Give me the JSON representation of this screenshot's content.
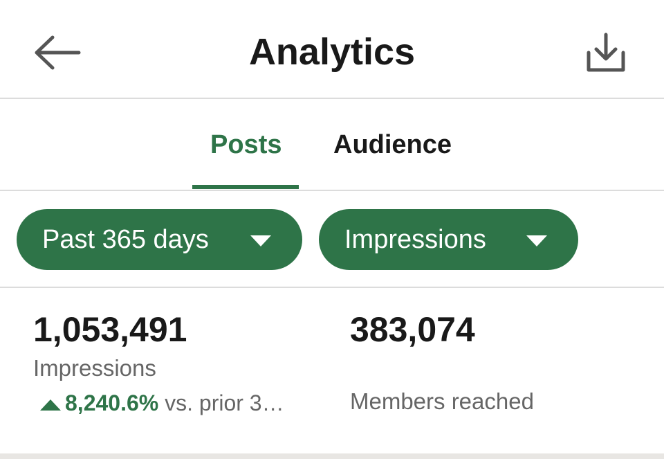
{
  "header": {
    "title": "Analytics"
  },
  "tabs": [
    "Posts",
    "Audience"
  ],
  "filters": [
    "Past 365 days",
    "Impressions"
  ],
  "metrics": [
    {
      "value": "1,053,491",
      "label": "Impressions",
      "change": "8,240.6%",
      "change_note": "vs. prior 3…"
    },
    {
      "value": "383,074",
      "label": "Members reached"
    }
  ]
}
